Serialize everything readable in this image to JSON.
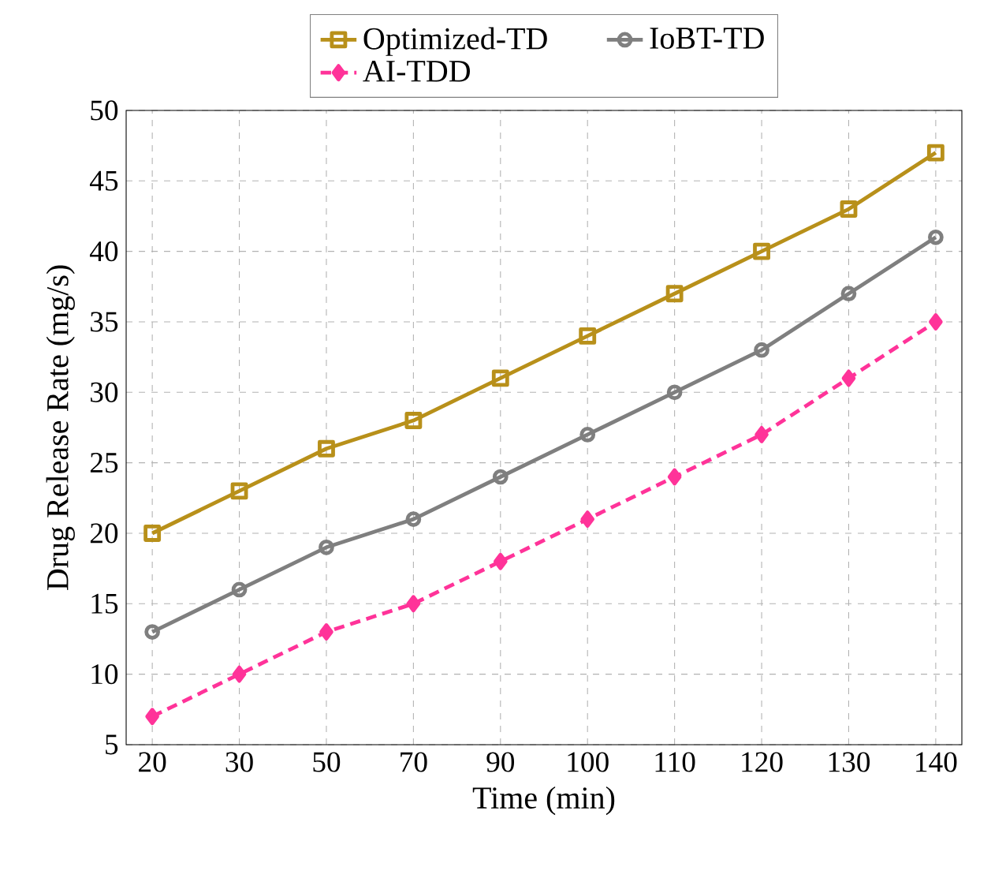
{
  "chart_data": {
    "type": "line",
    "xlabel": "Time (min)",
    "ylabel": "Drug Release Rate (mg/s)",
    "categories": [
      "20",
      "30",
      "50",
      "70",
      "90",
      "100",
      "110",
      "120",
      "130",
      "140"
    ],
    "ylim": [
      5,
      50
    ],
    "yticks": [
      5,
      10,
      15,
      20,
      25,
      30,
      35,
      40,
      45,
      50
    ],
    "grid": true,
    "legend": "top",
    "series": [
      {
        "name": "Optimized-TD",
        "color": "#b8901a",
        "marker": "square",
        "line_style": "solid",
        "values": [
          20,
          23,
          26,
          28,
          31,
          34,
          37,
          40,
          43,
          47
        ]
      },
      {
        "name": "IoBT-TD",
        "color": "#7f7f7f",
        "marker": "circle",
        "line_style": "solid",
        "values": [
          13,
          16,
          19,
          21,
          24,
          27,
          30,
          33,
          37,
          41
        ]
      },
      {
        "name": "AI-TDD",
        "color": "#ff3399",
        "marker": "diamond",
        "line_style": "dashed",
        "values": [
          7,
          10,
          13,
          15,
          18,
          21,
          24,
          27,
          31,
          35
        ]
      }
    ]
  }
}
